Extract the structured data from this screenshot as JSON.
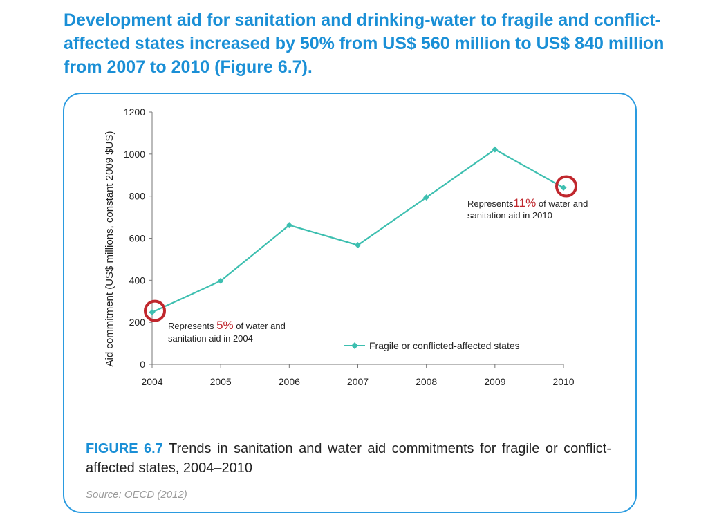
{
  "headline": "Development aid for sanitation and drinking-water to fragile and conflict-affected states increased by 50% from US$ 560 million to US$ 840 million from 2007 to 2010 (Figure 6.7).",
  "caption": {
    "label": "FIGURE 6.7",
    "text": "Trends in sanitation and water aid commitments for fragile or conflict-affected states, 2004–2010"
  },
  "source": "Source: OECD (2012)",
  "colors": {
    "accent": "#1a8fd6",
    "series": "#3dbfb0",
    "highlight": "#c0272d"
  },
  "annotations": [
    {
      "prefix": "Represents ",
      "pct": "5%",
      "suffix": " of water and",
      "line2": "sanitation aid in 2004",
      "year": "2004"
    },
    {
      "prefix": "Represents",
      "pct": "11%",
      "suffix": " of water and",
      "line2": "sanitation aid in 2010",
      "year": "2010"
    }
  ],
  "chart_data": {
    "type": "line",
    "title": "",
    "xlabel": "",
    "ylabel": "Aid commitment (US$ millions, constant 2009 $US)",
    "categories": [
      "2004",
      "2005",
      "2006",
      "2007",
      "2008",
      "2009",
      "2010"
    ],
    "ylim": [
      0,
      1200
    ],
    "yticks": [
      0,
      200,
      400,
      600,
      800,
      1000,
      1200
    ],
    "series": [
      {
        "name": "Fragile or conflicted-affected states",
        "values": [
          248,
          397,
          662,
          567,
          794,
          1022,
          840
        ]
      }
    ],
    "grid": false,
    "legend_position": "bottom-right",
    "highlighted_points": [
      "2004",
      "2010"
    ]
  }
}
